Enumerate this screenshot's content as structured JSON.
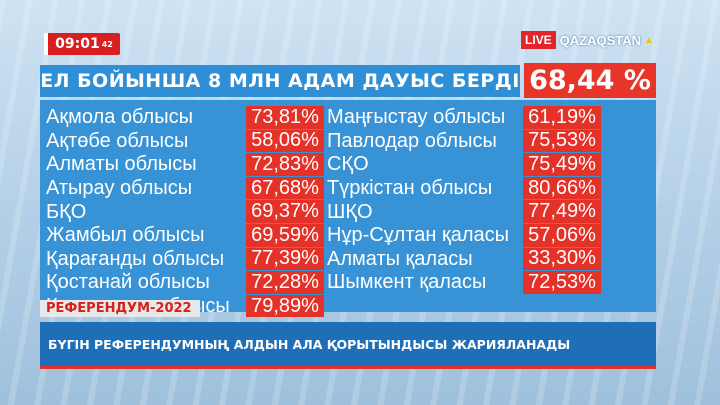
{
  "clock": {
    "time": "09:01",
    "seconds": "42"
  },
  "brand": {
    "live": "LIVE",
    "name": "QAZAQSTAN"
  },
  "headline": {
    "text": "ЕЛ БОЙЫНША 8 МЛН АДАМ ДАУЫС БЕРДІ",
    "value": "68,44 %"
  },
  "left_regions": [
    {
      "name": "Ақмола облысы",
      "value": "73,81%"
    },
    {
      "name": "Ақтөбе облысы",
      "value": "58,06%"
    },
    {
      "name": "Алматы облысы",
      "value": "72,83%"
    },
    {
      "name": "Атырау облысы",
      "value": "67,68%"
    },
    {
      "name": "БҚО",
      "value": "69,37%"
    },
    {
      "name": "Жамбыл облысы",
      "value": "69,59%"
    },
    {
      "name": "Қарағанды облысы",
      "value": "77,39%"
    },
    {
      "name": "Қостанай облысы",
      "value": "72,28%"
    },
    {
      "name": "Қызылорда облысы",
      "value": "79,89%"
    }
  ],
  "right_regions": [
    {
      "name": "Маңғыстау облысы",
      "value": "61,19%"
    },
    {
      "name": "Павлодар облысы",
      "value": "75,53%"
    },
    {
      "name": "СҚО",
      "value": "75,49%"
    },
    {
      "name": "Түркістан облысы",
      "value": "80,66%"
    },
    {
      "name": "ШҚО",
      "value": "77,49%"
    },
    {
      "name": "Нұр-Сұлтан қаласы",
      "value": "57,06%"
    },
    {
      "name": "Алматы қаласы",
      "value": "33,30%"
    },
    {
      "name": "Шымкент қаласы",
      "value": "72,53%"
    }
  ],
  "tag": "РЕФЕРЕНДУМ-2022",
  "ticker": "БҮГІН РЕФЕРЕНДУМНЫҢ АЛДЫН АЛА ҚОРЫТЫНДЫСЫ ЖАРИЯЛАНАДЫ",
  "colors": {
    "accent_red": "#e53228",
    "panel_blue": "#3792d6",
    "ticker_blue": "#1f6fb8"
  }
}
